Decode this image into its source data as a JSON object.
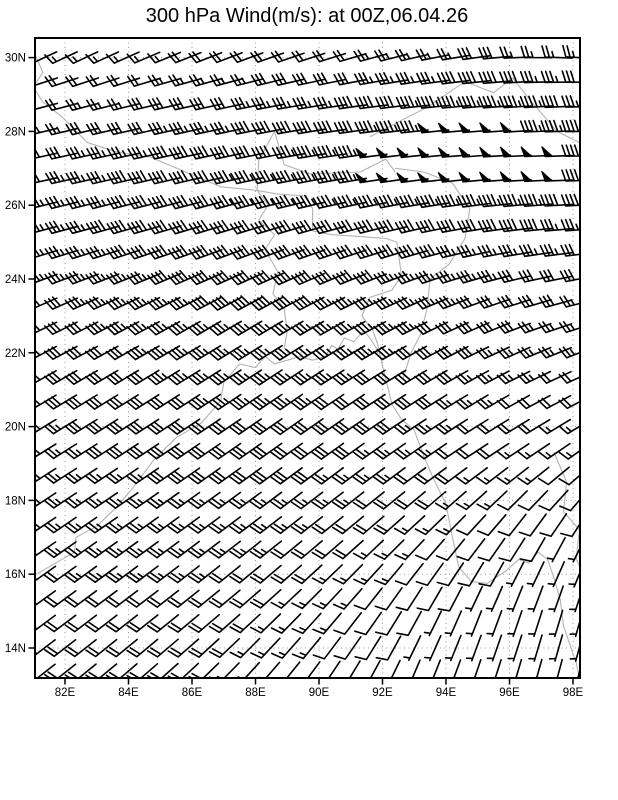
{
  "title": "300 hPa Wind(m/s): at 00Z,06.04.26",
  "colors": {
    "background": "#ffffff",
    "barb": "#000000",
    "frame": "#000000",
    "gridline": "#999999",
    "map_outline": "#b3b3b3",
    "label": "#000000"
  },
  "axes": {
    "lat": [
      {
        "label": "30N",
        "value": 30
      },
      {
        "label": "28N",
        "value": 28
      },
      {
        "label": "26N",
        "value": 26
      },
      {
        "label": "24N",
        "value": 24
      },
      {
        "label": "22N",
        "value": 22
      },
      {
        "label": "20N",
        "value": 20
      },
      {
        "label": "18N",
        "value": 18
      },
      {
        "label": "16N",
        "value": 16
      },
      {
        "label": "14N",
        "value": 14
      }
    ],
    "lon": [
      {
        "label": "82E",
        "value": 82
      },
      {
        "label": "84E",
        "value": 84
      },
      {
        "label": "86E",
        "value": 86
      },
      {
        "label": "88E",
        "value": 88
      },
      {
        "label": "90E",
        "value": 90
      },
      {
        "label": "92E",
        "value": 92
      },
      {
        "label": "94E",
        "value": 94
      },
      {
        "label": "96E",
        "value": 96
      },
      {
        "label": "98E",
        "value": 98
      }
    ]
  },
  "chart_data": {
    "type": "wind_barbs",
    "title": "300 hPa Wind(m/s): at 00Z,06.04.26",
    "level": "300 hPa",
    "units": "m/s",
    "valid_time": "00Z,06.04.26",
    "lon_range": [
      81.06,
      98.25
    ],
    "lat_range": [
      13.2,
      30.54
    ],
    "grid_on": true,
    "barb_convention": {
      "half_feather": 5,
      "full_feather": 10,
      "pennant": 50
    },
    "anchor_grid": {
      "lats": [
        31,
        29,
        27,
        25,
        23,
        21,
        19,
        17,
        15,
        13
      ],
      "lons": [
        81,
        83,
        85,
        87,
        89,
        91,
        93,
        95,
        97,
        99
      ],
      "speed_ms": [
        [
          8,
          8,
          8,
          8,
          8,
          8,
          10,
          12,
          12,
          12
        ],
        [
          18,
          22,
          26,
          30,
          33,
          36,
          42,
          44,
          42,
          30
        ],
        [
          30,
          36,
          40,
          43,
          45,
          48,
          52,
          54,
          52,
          46
        ],
        [
          35,
          38,
          40,
          42,
          42,
          40,
          40,
          38,
          35,
          30
        ],
        [
          30,
          33,
          35,
          38,
          38,
          36,
          34,
          30,
          28,
          25
        ],
        [
          28,
          30,
          32,
          34,
          34,
          32,
          30,
          26,
          22,
          20
        ],
        [
          25,
          27,
          28,
          30,
          30,
          28,
          24,
          18,
          14,
          10
        ],
        [
          22,
          24,
          25,
          25,
          24,
          20,
          15,
          10,
          8,
          6
        ],
        [
          22,
          22,
          22,
          20,
          16,
          12,
          8,
          6,
          5,
          5
        ],
        [
          20,
          20,
          20,
          16,
          12,
          10,
          6,
          5,
          5,
          5
        ]
      ],
      "dir_from_deg": [
        [
          235,
          235,
          238,
          240,
          242,
          245,
          250,
          260,
          275,
          280
        ],
        [
          255,
          255,
          257,
          258,
          260,
          262,
          264,
          265,
          267,
          270
        ],
        [
          258,
          258,
          258,
          258,
          260,
          262,
          264,
          266,
          268,
          270
        ],
        [
          255,
          254,
          253,
          252,
          252,
          254,
          256,
          260,
          264,
          266
        ],
        [
          245,
          244,
          242,
          240,
          240,
          242,
          244,
          248,
          252,
          255
        ],
        [
          240,
          239,
          238,
          237,
          236,
          237,
          238,
          240,
          243,
          245
        ],
        [
          238,
          237,
          236,
          235,
          234,
          234,
          235,
          236,
          235,
          232
        ],
        [
          236,
          235,
          234,
          233,
          232,
          230,
          226,
          220,
          212,
          206
        ],
        [
          234,
          233,
          232,
          230,
          226,
          220,
          210,
          202,
          198,
          195
        ],
        [
          232,
          230,
          228,
          224,
          218,
          210,
          202,
          198,
          195,
          194
        ]
      ]
    },
    "plot_grid": {
      "lon_start": 81.35,
      "lon_step": 0.648,
      "cols": 27,
      "lat_start": 30.0,
      "lat_step": 0.6667,
      "rows": 26
    }
  },
  "map": {
    "outlines": [
      [
        [
          81,
          15.95
        ],
        [
          81.8,
          16.35
        ],
        [
          82.3,
          16.6
        ],
        [
          82.35,
          17.0
        ],
        [
          83.0,
          17.3
        ],
        [
          83.6,
          17.8
        ],
        [
          84.1,
          18.3
        ],
        [
          84.8,
          19.1
        ],
        [
          85.5,
          19.7
        ],
        [
          86.3,
          20.1
        ],
        [
          86.9,
          20.7
        ],
        [
          87.0,
          21.2
        ],
        [
          87.5,
          21.7
        ],
        [
          88.0,
          21.6
        ],
        [
          88.3,
          21.9
        ],
        [
          88.6,
          21.7
        ],
        [
          89.0,
          21.8
        ],
        [
          89.4,
          21.9
        ],
        [
          89.8,
          21.8
        ],
        [
          90.2,
          21.9
        ],
        [
          90.4,
          22.2
        ],
        [
          90.6,
          22.1
        ],
        [
          90.8,
          22.4
        ],
        [
          91.1,
          22.3
        ],
        [
          91.4,
          22.6
        ],
        [
          91.6,
          22.4
        ],
        [
          91.9,
          22.0
        ],
        [
          92.1,
          21.3
        ],
        [
          92.3,
          20.6
        ],
        [
          92.6,
          20.2
        ],
        [
          93.0,
          19.9
        ],
        [
          93.3,
          19.2
        ],
        [
          93.6,
          18.6
        ],
        [
          94.0,
          17.9
        ],
        [
          94.2,
          17.0
        ],
        [
          94.4,
          16.2
        ],
        [
          94.8,
          15.8
        ],
        [
          95.3,
          15.75
        ],
        [
          95.9,
          16.1
        ],
        [
          96.3,
          16.4
        ],
        [
          96.6,
          16.3
        ],
        [
          96.9,
          16.6
        ],
        [
          97.2,
          16.4
        ],
        [
          97.4,
          15.9
        ],
        [
          97.6,
          15.3
        ],
        [
          97.7,
          14.6
        ],
        [
          97.9,
          14.1
        ],
        [
          98.1,
          13.6
        ],
        [
          98.2,
          13.2
        ]
      ],
      [
        [
          81.0,
          30.2
        ],
        [
          81.3,
          29.6
        ],
        [
          81.0,
          29.2
        ],
        [
          81.3,
          28.8
        ],
        [
          81.9,
          28.4
        ],
        [
          82.7,
          27.7
        ],
        [
          83.6,
          27.45
        ],
        [
          84.7,
          27.3
        ],
        [
          85.8,
          26.9
        ],
        [
          86.9,
          26.5
        ],
        [
          88.05,
          26.4
        ]
      ],
      [
        [
          88.05,
          26.4
        ],
        [
          88.1,
          27.2
        ],
        [
          88.6,
          28.0
        ],
        [
          88.9,
          27.1
        ],
        [
          89.7,
          26.85
        ],
        [
          91.3,
          26.9
        ],
        [
          92.1,
          27.25
        ],
        [
          92.4,
          26.9
        ]
      ],
      [
        [
          88.05,
          26.4
        ],
        [
          88.4,
          26.0
        ],
        [
          88.1,
          25.6
        ],
        [
          88.6,
          25.2
        ],
        [
          88.3,
          24.8
        ],
        [
          88.7,
          24.2
        ],
        [
          88.55,
          23.6
        ],
        [
          88.9,
          23.2
        ],
        [
          89.0,
          22.6
        ],
        [
          88.9,
          22.1
        ]
      ],
      [
        [
          88.05,
          26.4
        ],
        [
          88.7,
          26.3
        ],
        [
          89.6,
          26.25
        ],
        [
          89.8,
          25.9
        ],
        [
          89.8,
          25.3
        ],
        [
          90.4,
          25.2
        ],
        [
          91.3,
          25.15
        ],
        [
          92.1,
          25.1
        ],
        [
          92.45,
          25.0
        ],
        [
          92.6,
          24.1
        ],
        [
          92.3,
          23.7
        ],
        [
          91.6,
          23.5
        ],
        [
          91.35,
          23.0
        ],
        [
          91.7,
          22.6
        ],
        [
          91.9,
          22.1
        ]
      ],
      [
        [
          92.4,
          27.0
        ],
        [
          93.3,
          26.9
        ],
        [
          94.2,
          26.6
        ],
        [
          94.75,
          25.9
        ],
        [
          94.6,
          25.1
        ],
        [
          94.1,
          24.4
        ],
        [
          93.5,
          24.0
        ],
        [
          93.4,
          23.2
        ],
        [
          93.2,
          22.5
        ],
        [
          92.9,
          22.0
        ],
        [
          92.65,
          21.3
        ]
      ],
      [
        [
          91.6,
          27.85
        ],
        [
          92.6,
          28.3
        ],
        [
          93.4,
          28.65
        ],
        [
          94.6,
          29.35
        ],
        [
          95.5,
          29.05
        ],
        [
          96.1,
          29.45
        ],
        [
          96.6,
          28.9
        ],
        [
          97.1,
          28.4
        ],
        [
          97.5,
          28.0
        ],
        [
          98.2,
          27.7
        ],
        [
          98.4,
          27.2
        ],
        [
          98.3,
          26.6
        ],
        [
          98.5,
          25.8
        ]
      ],
      [
        [
          97.4,
          19.3
        ],
        [
          97.8,
          18.5
        ],
        [
          97.7,
          17.7
        ],
        [
          98.2,
          17.2
        ],
        [
          98.1,
          16.4
        ],
        [
          98.5,
          15.7
        ],
        [
          98.2,
          15.2
        ],
        [
          98.3,
          14.6
        ],
        [
          98.6,
          14.2
        ]
      ]
    ]
  }
}
